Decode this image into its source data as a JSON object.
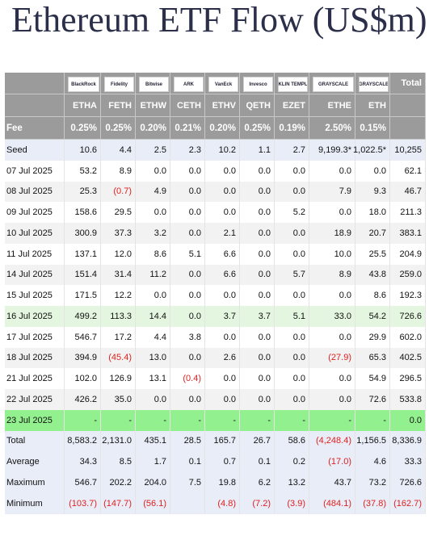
{
  "header": {
    "title": "Ethereum ETF Flow (US$m)"
  },
  "table": {
    "logos": [
      "BlackRock",
      "Fidelity",
      "Bitwise",
      "ARK",
      "VanEck",
      "Invesco",
      "FRANKLIN TEMPLETON",
      "GRAYSCALE",
      "GRAYSCALE"
    ],
    "total_header": "Total",
    "tickers": [
      "ETHA",
      "FETH",
      "ETHW",
      "CETH",
      "ETHV",
      "QETH",
      "EZET",
      "ETHE",
      "ETH"
    ],
    "fee_label": "Fee",
    "fees": [
      "0.25%",
      "0.25%",
      "0.20%",
      "0.21%",
      "0.20%",
      "0.25%",
      "0.19%",
      "2.50%",
      "0.15%"
    ],
    "rows": [
      {
        "label": "Seed",
        "cells": [
          "10.6",
          "4.4",
          "2.5",
          "2.3",
          "10.2",
          "1.1",
          "2.7",
          "9,199.3*",
          "1,022.5*",
          "10,255"
        ]
      },
      {
        "label": "07 Jul 2025",
        "cells": [
          "53.2",
          "8.9",
          "0.0",
          "0.0",
          "0.0",
          "0.0",
          "0.0",
          "0.0",
          "0.0",
          "62.1"
        ]
      },
      {
        "label": "08 Jul 2025",
        "cells": [
          "25.3",
          "(0.7)",
          "4.9",
          "0.0",
          "0.0",
          "0.0",
          "0.0",
          "7.9",
          "9.3",
          "46.7"
        ]
      },
      {
        "label": "09 Jul 2025",
        "cells": [
          "158.6",
          "29.5",
          "0.0",
          "0.0",
          "0.0",
          "0.0",
          "5.2",
          "0.0",
          "18.0",
          "211.3"
        ]
      },
      {
        "label": "10 Jul 2025",
        "cells": [
          "300.9",
          "37.3",
          "3.2",
          "0.0",
          "2.1",
          "0.0",
          "0.0",
          "18.9",
          "20.7",
          "383.1"
        ]
      },
      {
        "label": "11 Jul 2025",
        "cells": [
          "137.1",
          "12.0",
          "8.6",
          "5.1",
          "6.6",
          "0.0",
          "0.0",
          "10.0",
          "25.5",
          "204.9"
        ]
      },
      {
        "label": "14 Jul 2025",
        "cells": [
          "151.4",
          "31.4",
          "11.2",
          "0.0",
          "6.6",
          "0.0",
          "5.7",
          "8.9",
          "43.8",
          "259.0"
        ]
      },
      {
        "label": "15 Jul 2025",
        "cells": [
          "171.5",
          "12.2",
          "0.0",
          "0.0",
          "0.0",
          "0.0",
          "0.0",
          "0.0",
          "8.6",
          "192.3"
        ]
      },
      {
        "label": "16 Jul 2025",
        "cells": [
          "499.2",
          "113.3",
          "14.4",
          "0.0",
          "3.7",
          "3.7",
          "5.1",
          "33.0",
          "54.2",
          "726.6"
        ]
      },
      {
        "label": "17 Jul 2025",
        "cells": [
          "546.7",
          "17.2",
          "4.4",
          "3.8",
          "0.0",
          "0.0",
          "0.0",
          "0.0",
          "29.9",
          "602.0"
        ]
      },
      {
        "label": "18 Jul 2025",
        "cells": [
          "394.9",
          "(45.4)",
          "13.0",
          "0.0",
          "2.6",
          "0.0",
          "0.0",
          "(27.9)",
          "65.3",
          "402.5"
        ]
      },
      {
        "label": "21 Jul 2025",
        "cells": [
          "102.0",
          "126.9",
          "13.1",
          "(0.4)",
          "0.0",
          "0.0",
          "0.0",
          "0.0",
          "54.9",
          "296.5"
        ]
      },
      {
        "label": "22 Jul 2025",
        "cells": [
          "426.2",
          "35.0",
          "0.0",
          "0.0",
          "0.0",
          "0.0",
          "0.0",
          "0.0",
          "72.6",
          "533.8"
        ]
      },
      {
        "label": "23 Jul 2025",
        "cells": [
          "-",
          "-",
          "-",
          "-",
          "-",
          "-",
          "-",
          "-",
          "-",
          "0.0"
        ]
      },
      {
        "label": "Total",
        "cells": [
          "8,583.2",
          "2,131.0",
          "435.1",
          "28.5",
          "165.7",
          "26.7",
          "58.6",
          "(4,248.4)",
          "1,156.5",
          "8,336.9"
        ]
      },
      {
        "label": "Average",
        "cells": [
          "34.3",
          "8.5",
          "1.7",
          "0.1",
          "0.7",
          "0.1",
          "0.2",
          "(17.0)",
          "4.6",
          "33.3"
        ]
      },
      {
        "label": "Maximum",
        "cells": [
          "546.7",
          "202.2",
          "204.0",
          "7.5",
          "19.8",
          "6.2",
          "13.2",
          "43.7",
          "73.2",
          "726.6"
        ]
      },
      {
        "label": "Minimum",
        "cells": [
          "(103.7)",
          "(147.7)",
          "(56.1)",
          null,
          "(4.8)",
          "(7.2)",
          "(3.9)",
          "(484.1)",
          "(37.8)",
          "(162.7)"
        ]
      }
    ]
  }
}
